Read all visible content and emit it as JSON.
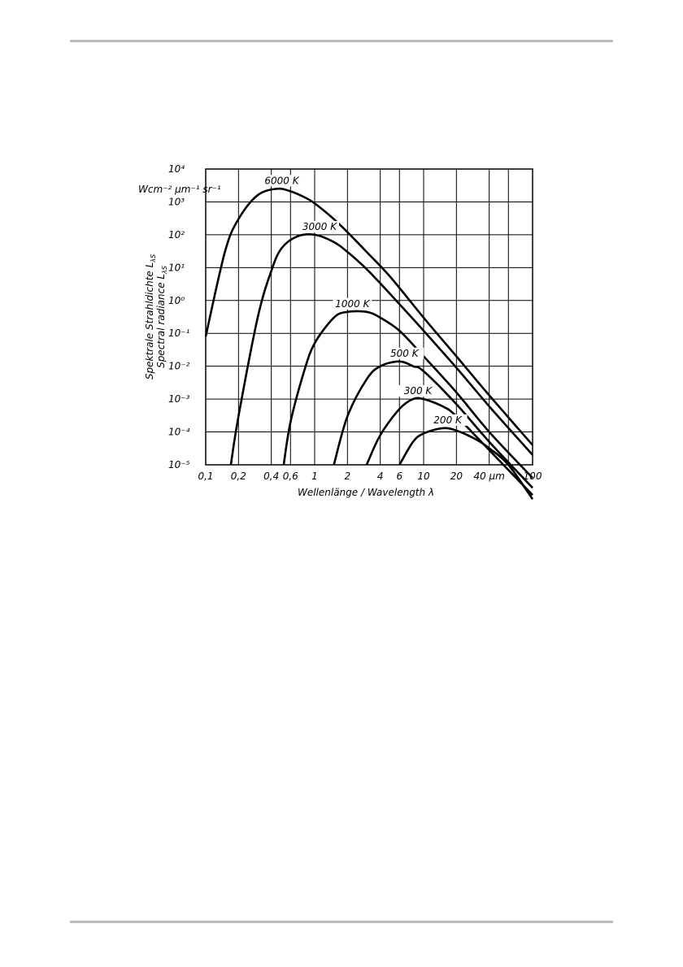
{
  "chart_data": {
    "type": "line",
    "x_scale": "log",
    "y_scale": "log",
    "xlim": [
      0.1,
      100
    ],
    "ylim": [
      1e-05,
      10000
    ],
    "grid": true,
    "legend": "none",
    "title": "",
    "xlabel": "Wellenlänge / Wavelength λ",
    "ylabel_line1": "Spektrale Strahldichte L",
    "ylabel_line2": "Spectral radiance L",
    "ylabel_subscript": "λS",
    "y_unit": "Wcm⁻² μm⁻¹ sr⁻¹",
    "x_ticks": [
      {
        "value": 0.1,
        "label": "0,1"
      },
      {
        "value": 0.2,
        "label": "0,2"
      },
      {
        "value": 0.4,
        "label": "0,4"
      },
      {
        "value": 0.6,
        "label": "0,6"
      },
      {
        "value": 1,
        "label": "1"
      },
      {
        "value": 2,
        "label": "2"
      },
      {
        "value": 4,
        "label": "4"
      },
      {
        "value": 6,
        "label": "6"
      },
      {
        "value": 10,
        "label": "10"
      },
      {
        "value": 20,
        "label": "20"
      },
      {
        "value": 40,
        "label": "40 μm"
      },
      {
        "value": 100,
        "label": "100"
      }
    ],
    "y_ticks": [
      {
        "value": 10000,
        "label": "10⁴"
      },
      {
        "value": 1000,
        "label": "10³"
      },
      {
        "value": 100,
        "label": "10²"
      },
      {
        "value": 10,
        "label": "10¹"
      },
      {
        "value": 1,
        "label": "10⁰"
      },
      {
        "value": 0.1,
        "label": "10⁻¹"
      },
      {
        "value": 0.01,
        "label": "10⁻²"
      },
      {
        "value": 0.001,
        "label": "10⁻³"
      },
      {
        "value": 0.0001,
        "label": "10⁻⁴"
      },
      {
        "value": 1e-05,
        "label": "10⁻⁵"
      }
    ],
    "series": [
      {
        "name": "6000 K",
        "temperature_K": 6000,
        "points": [
          [
            0.1,
            0.08
          ],
          [
            0.15,
            30
          ],
          [
            0.2,
            300
          ],
          [
            0.3,
            1600
          ],
          [
            0.45,
            2500
          ],
          [
            0.6,
            2100
          ],
          [
            0.8,
            1400
          ],
          [
            1,
            900
          ],
          [
            1.5,
            300
          ],
          [
            2,
            120
          ],
          [
            3,
            30
          ],
          [
            5,
            5
          ],
          [
            10,
            0.3
          ],
          [
            20,
            0.02
          ],
          [
            40,
            0.0013
          ],
          [
            100,
            4e-05
          ]
        ]
      },
      {
        "name": "3000 K",
        "temperature_K": 3000,
        "points": [
          [
            0.17,
            1e-05
          ],
          [
            0.2,
            0.0003
          ],
          [
            0.3,
            0.3
          ],
          [
            0.4,
            8
          ],
          [
            0.5,
            40
          ],
          [
            0.7,
            90
          ],
          [
            1,
            100
          ],
          [
            1.5,
            60
          ],
          [
            2,
            30
          ],
          [
            3,
            9
          ],
          [
            5,
            1.5
          ],
          [
            10,
            0.12
          ],
          [
            20,
            0.009
          ],
          [
            40,
            0.0006
          ],
          [
            100,
            2e-05
          ]
        ]
      },
      {
        "name": "1000 K",
        "temperature_K": 1000,
        "points": [
          [
            0.52,
            1e-05
          ],
          [
            0.6,
            0.0002
          ],
          [
            0.8,
            0.007
          ],
          [
            1,
            0.05
          ],
          [
            1.5,
            0.3
          ],
          [
            2,
            0.45
          ],
          [
            3,
            0.45
          ],
          [
            4,
            0.3
          ],
          [
            6,
            0.12
          ],
          [
            10,
            0.02
          ],
          [
            20,
            0.0016
          ],
          [
            40,
            0.0001
          ],
          [
            100,
            4e-06
          ]
        ]
      },
      {
        "name": "500 K",
        "temperature_K": 500,
        "points": [
          [
            1.5,
            1e-05
          ],
          [
            2,
            0.0003
          ],
          [
            3,
            0.004
          ],
          [
            4,
            0.01
          ],
          [
            6,
            0.014
          ],
          [
            8,
            0.01
          ],
          [
            10,
            0.007
          ],
          [
            20,
            0.0007
          ],
          [
            40,
            5e-05
          ],
          [
            100,
            2e-06
          ]
        ]
      },
      {
        "name": "300 K",
        "temperature_K": 300,
        "points": [
          [
            3,
            1e-05
          ],
          [
            4,
            8e-05
          ],
          [
            6,
            0.0005
          ],
          [
            8,
            0.001
          ],
          [
            10,
            0.001
          ],
          [
            15,
            0.0006
          ],
          [
            20,
            0.0003
          ],
          [
            40,
            2.8e-05
          ],
          [
            100,
            1.2e-06
          ]
        ]
      },
      {
        "name": "200 K",
        "temperature_K": 200,
        "points": [
          [
            6,
            1e-05
          ],
          [
            8,
            5e-05
          ],
          [
            10,
            9e-05
          ],
          [
            15,
            0.00013
          ],
          [
            20,
            0.00011
          ],
          [
            30,
            6e-05
          ],
          [
            40,
            3.2e-05
          ],
          [
            60,
            1e-05
          ],
          [
            100,
            9e-07
          ]
        ]
      }
    ]
  }
}
